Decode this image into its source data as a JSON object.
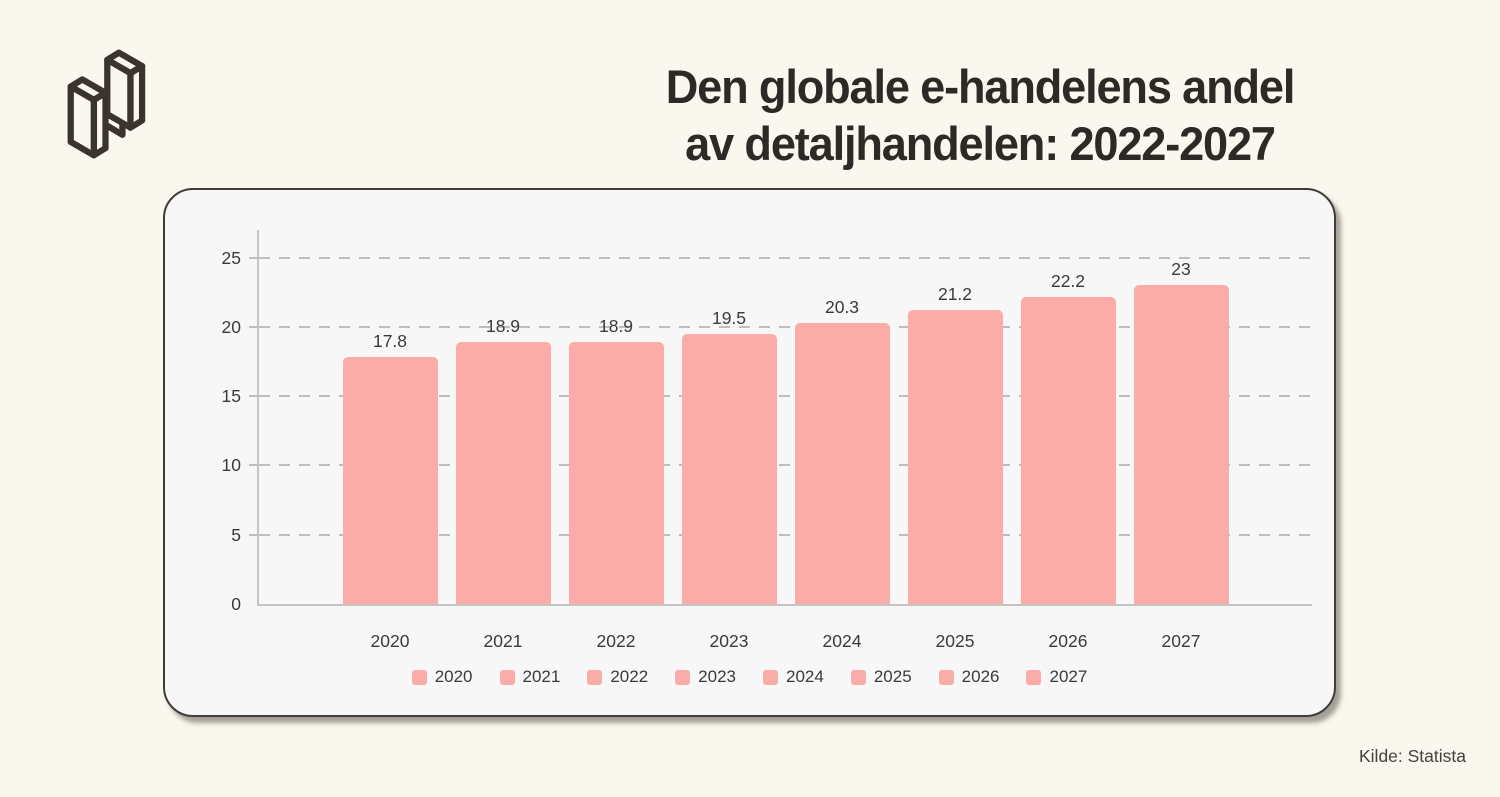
{
  "page": {
    "background_color": "#FAF7EE",
    "title_line1": "Den globale e-handelens andel",
    "title_line2": "av detaljhandelen: 2022-2027",
    "source": "Kilde: Statista",
    "logo_icon": "isometric-n-logo"
  },
  "chart_data": {
    "type": "bar",
    "title": "Den globale e-handelens andel av detaljhandelen: 2022-2027",
    "categories": [
      "2020",
      "2021",
      "2022",
      "2023",
      "2024",
      "2025",
      "2026",
      "2027"
    ],
    "values": [
      17.8,
      18.9,
      18.9,
      19.5,
      20.3,
      21.2,
      22.2,
      23
    ],
    "value_labels": [
      "17.8",
      "18.9",
      "18.9",
      "19.5",
      "20.3",
      "21.2",
      "22.2",
      "23"
    ],
    "xlabel": "",
    "ylabel": "",
    "y_ticks": [
      0,
      5,
      10,
      15,
      20,
      25
    ],
    "ylim": [
      0,
      27
    ],
    "grid": true,
    "grid_style": "dashed",
    "bar_color": "#FBACA8",
    "legend": [
      "2020",
      "2021",
      "2022",
      "2023",
      "2024",
      "2025",
      "2026",
      "2027"
    ],
    "legend_position": "bottom",
    "source": "Kilde: Statista"
  }
}
